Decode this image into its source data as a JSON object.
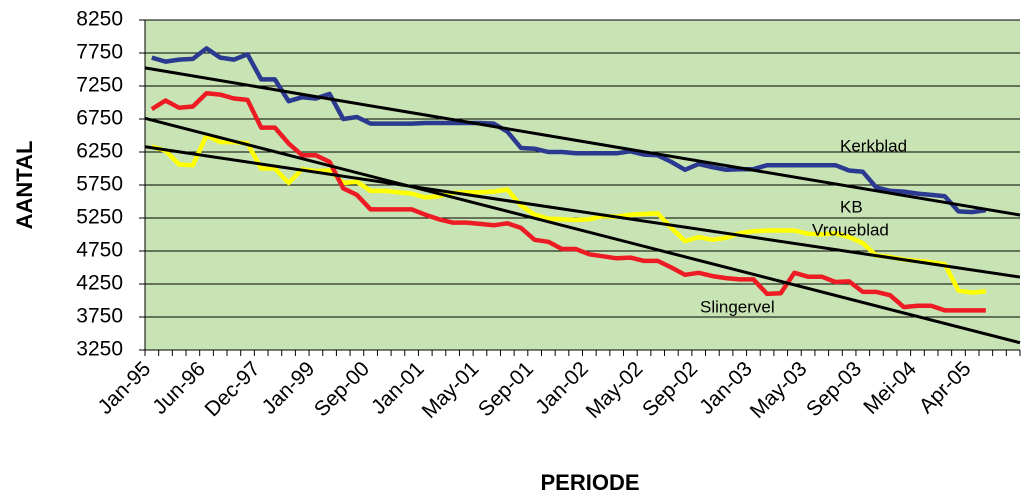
{
  "chart_data": {
    "type": "line",
    "xlabel": "PERIODE",
    "ylabel": "AANTAL",
    "categories": [
      "Jan-95",
      null,
      null,
      null,
      "Jun-96",
      null,
      null,
      null,
      "Dec-97",
      null,
      null,
      null,
      "Jan-99",
      null,
      null,
      null,
      "Sep-00",
      null,
      null,
      null,
      "Jan-01",
      null,
      null,
      null,
      "May-01",
      null,
      null,
      null,
      "Sep-01",
      null,
      null,
      null,
      "Jan-02",
      null,
      null,
      null,
      "May-02",
      null,
      null,
      null,
      "Sep-02",
      null,
      null,
      null,
      "Jan-03",
      null,
      null,
      null,
      "May-03",
      null,
      null,
      null,
      "Sep-03",
      null,
      null,
      null,
      "Mei-04",
      null,
      null,
      null,
      "Apr-05",
      null,
      null,
      null
    ],
    "series": [
      {
        "name": "Kerkblad",
        "color": "#2b3990",
        "values": [
          7680,
          7620,
          7650,
          7660,
          7820,
          7680,
          7650,
          7730,
          7350,
          7350,
          7020,
          7080,
          7060,
          7130,
          6750,
          6780,
          6680,
          6680,
          6680,
          6680,
          6690,
          6690,
          6690,
          6690,
          6690,
          6680,
          6560,
          6310,
          6300,
          6250,
          6250,
          6230,
          6230,
          6230,
          6230,
          6260,
          6210,
          6200,
          6100,
          5980,
          6070,
          6020,
          5980,
          5990,
          5990,
          6050,
          6050,
          6050,
          6050,
          6050,
          6050,
          5970,
          5950,
          5710,
          5660,
          5650,
          5620,
          5600,
          5580,
          5350,
          5340,
          5370,
          null,
          null
        ]
      },
      {
        "name": "Vroueblad",
        "color": "#ffff00",
        "values": [
          6330,
          6270,
          6060,
          6050,
          6500,
          6400,
          6400,
          6380,
          6000,
          6000,
          5780,
          5990,
          5960,
          5970,
          5780,
          5800,
          5660,
          5660,
          5640,
          5620,
          5560,
          5580,
          5630,
          5640,
          5640,
          5650,
          5680,
          5440,
          5300,
          5240,
          5230,
          5220,
          5230,
          5280,
          5270,
          5300,
          5310,
          5320,
          5100,
          4900,
          4960,
          4920,
          4950,
          5020,
          5050,
          5060,
          5060,
          5060,
          5010,
          5000,
          5020,
          4960,
          4870,
          4680,
          4660,
          4620,
          4600,
          4580,
          4550,
          4150,
          4120,
          4140,
          null,
          null
        ]
      },
      {
        "name": "Slingervel",
        "color": "#ed1c24",
        "values": [
          6900,
          7030,
          6920,
          6940,
          7140,
          7120,
          7060,
          7040,
          6620,
          6620,
          6380,
          6200,
          6200,
          6100,
          5700,
          5600,
          5380,
          5380,
          5380,
          5380,
          5300,
          5230,
          5180,
          5180,
          5160,
          5140,
          5170,
          5100,
          4920,
          4890,
          4780,
          4780,
          4700,
          4670,
          4640,
          4650,
          4600,
          4600,
          4500,
          4390,
          4420,
          4370,
          4340,
          4320,
          4320,
          4100,
          4110,
          4420,
          4360,
          4360,
          4280,
          4290,
          4130,
          4130,
          4080,
          3900,
          3920,
          3920,
          3850,
          3850,
          3850,
          3850,
          null,
          null
        ]
      }
    ],
    "trendlines": [
      {
        "color": "#000000",
        "values": [
          7525,
          5295
        ]
      },
      {
        "color": "#000000",
        "values": [
          6760,
          3360
        ]
      },
      {
        "color": "#000000",
        "values": [
          6330,
          4355
        ]
      }
    ],
    "annotations": [
      "Kerkblad",
      "KB",
      "Vroueblad",
      "Slingervel"
    ],
    "ylim": [
      3250,
      8250
    ],
    "yticks": [
      3250,
      3750,
      4250,
      4750,
      5250,
      5750,
      6250,
      6750,
      7250,
      7750,
      8250
    ],
    "grid": true,
    "plot_background": "#c9e4b4"
  }
}
